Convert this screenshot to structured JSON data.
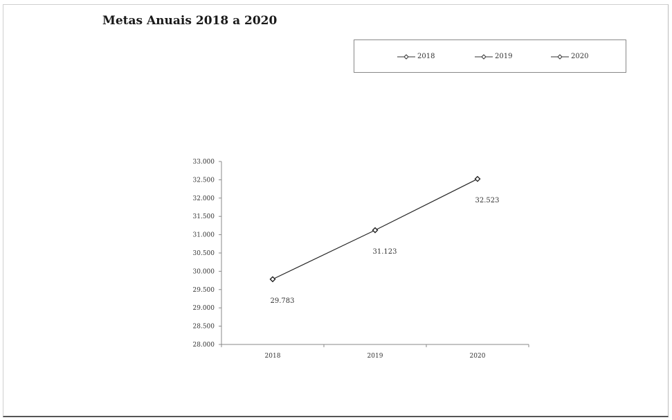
{
  "chart_data": {
    "type": "line",
    "title": "Metas Anuais 2018 a 2020",
    "categories": [
      "2018",
      "2019",
      "2020"
    ],
    "series": [
      {
        "values": [
          29783,
          31123,
          32523
        ],
        "labels": [
          "29.783",
          "31.123",
          "32.523"
        ]
      }
    ],
    "legend": [
      "2018",
      "2019",
      "2020"
    ],
    "legend_position": "top-right",
    "ylim": [
      28000,
      33000
    ],
    "yticks": [
      28000,
      28500,
      29000,
      29500,
      30000,
      30500,
      31000,
      31500,
      32000,
      32500,
      33000
    ],
    "ytick_labels": [
      "28.000",
      "28.500",
      "29.000",
      "29.500",
      "30.000",
      "30.500",
      "31.000",
      "31.500",
      "32.000",
      "32.500",
      "33.000"
    ],
    "xlabel": "",
    "ylabel": "",
    "grid": false,
    "line_color": "#222222"
  }
}
